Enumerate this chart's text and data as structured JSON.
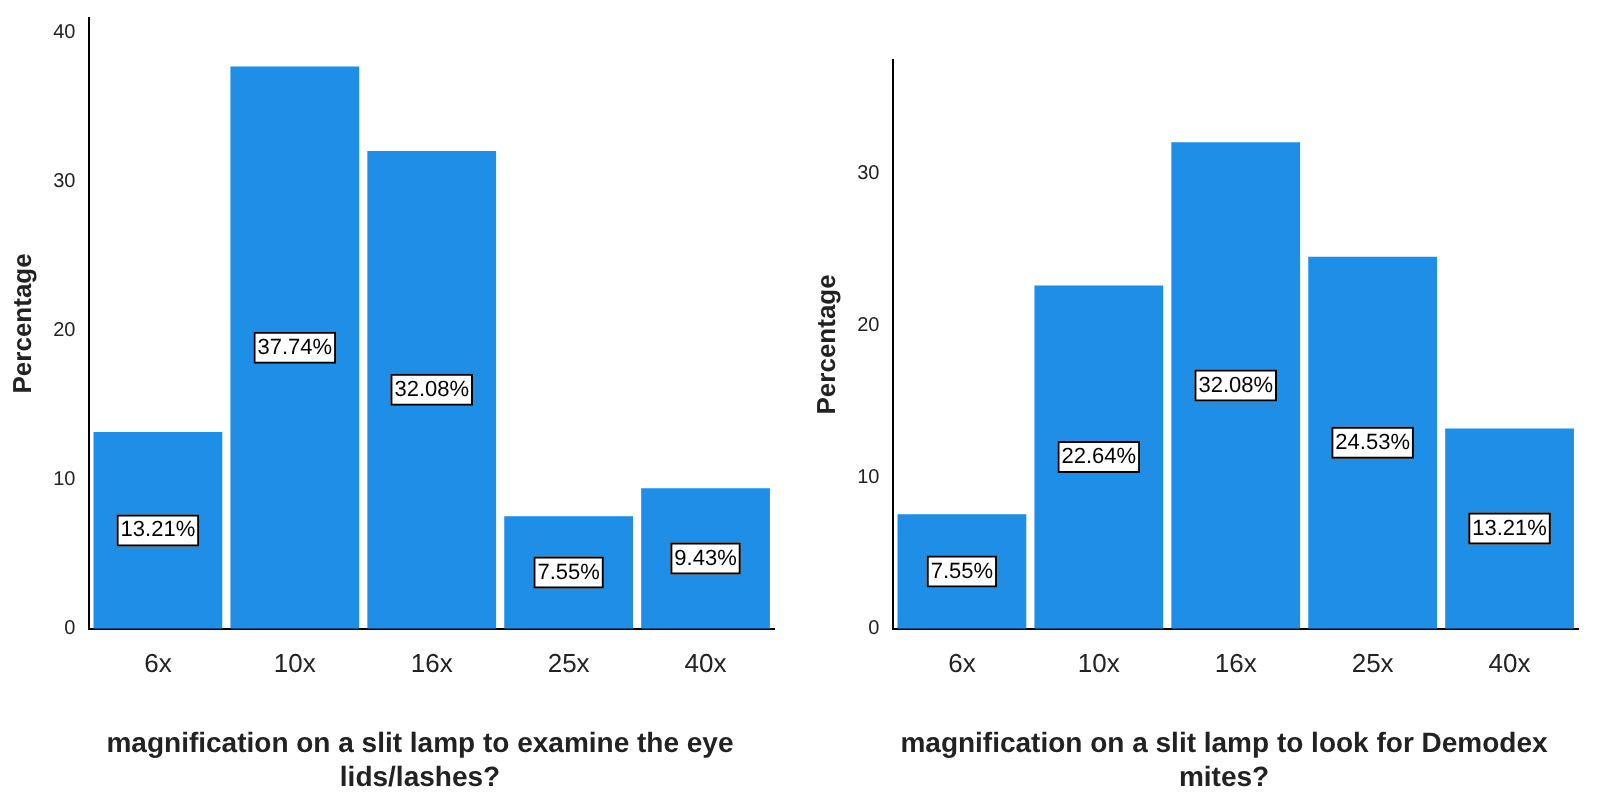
{
  "chart_data": [
    {
      "type": "bar",
      "xlabel": "magnification on a slit lamp to examine the eye lids/lashes?",
      "ylabel": "Percentage",
      "categories": [
        "6x",
        "10x",
        "16x",
        "25x",
        "40x"
      ],
      "values": [
        13.21,
        37.74,
        32.08,
        7.55,
        9.43
      ],
      "value_labels": [
        "13.21%",
        "37.74%",
        "32.08%",
        "7.55%",
        "9.43%"
      ],
      "color": "#1e8ee6",
      "ylim": [
        0,
        41
      ],
      "yticks": [
        0,
        10,
        20,
        30,
        40
      ],
      "grid": false,
      "legend": false
    },
    {
      "type": "bar",
      "xlabel": "magnification on a slit lamp to look for Demodex mites?",
      "ylabel": "Percentage",
      "categories": [
        "6x",
        "10x",
        "16x",
        "25x",
        "40x"
      ],
      "values": [
        7.55,
        22.64,
        32.08,
        24.53,
        13.21
      ],
      "value_labels": [
        "7.55%",
        "22.64%",
        "32.08%",
        "24.53%",
        "13.21%"
      ],
      "color": "#1e8ee6",
      "ylim": [
        0,
        37.5
      ],
      "yticks": [
        0,
        10,
        20,
        30
      ],
      "grid": false,
      "legend": false
    }
  ]
}
